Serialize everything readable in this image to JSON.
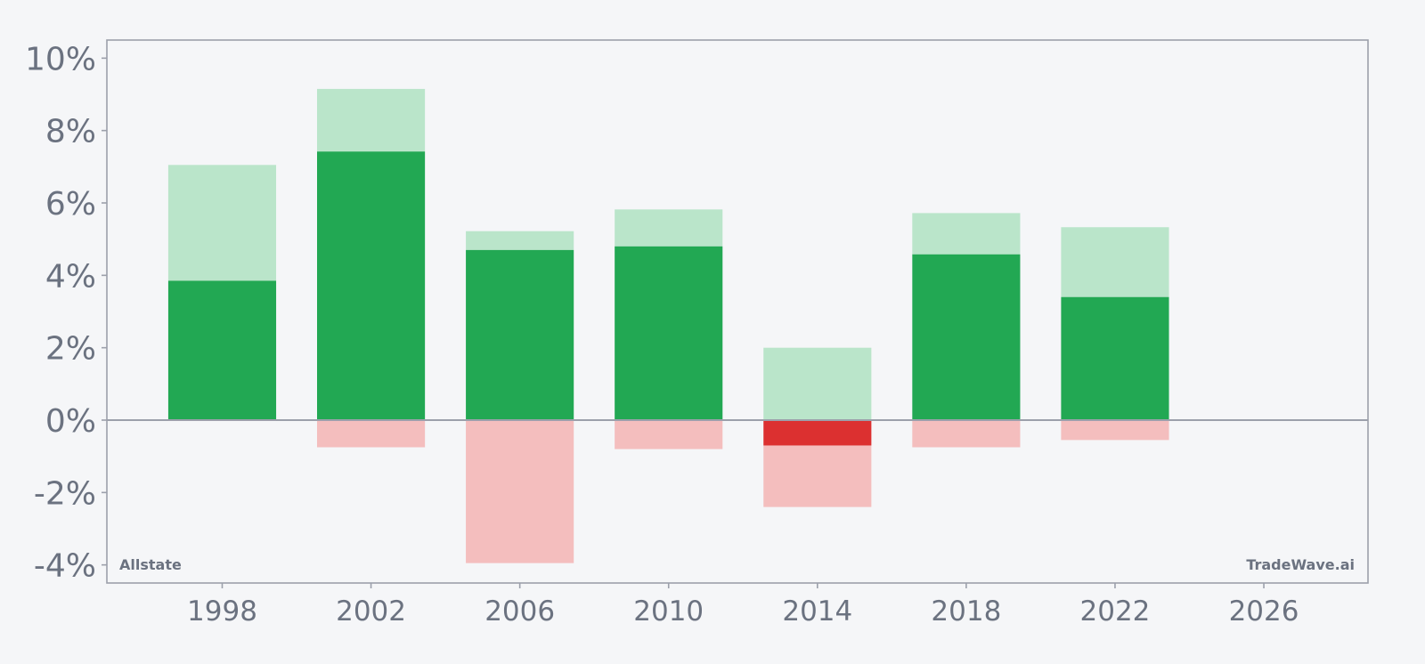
{
  "chart_data": {
    "type": "bar",
    "title": "",
    "xlabel": "",
    "ylabel": "",
    "x": [
      1998,
      2002,
      2006,
      2010,
      2014,
      2018,
      2022
    ],
    "series": [
      {
        "range_pos": [
          3.85,
          7.05,
          4.7,
          4.8,
          2.0,
          4.58,
          5.33
        ]
      },
      {
        "actual": [
          3.85,
          7.42,
          4.7,
          4.8,
          -0.7,
          4.58,
          3.4
        ]
      },
      {
        "range_neg": [
          0,
          -0.75,
          -3.95,
          -0.8,
          -2.4,
          -0.75,
          -0.55
        ]
      },
      {
        "range_top": [
          7.05,
          9.15,
          5.22,
          5.82,
          2.0,
          5.72,
          5.33
        ]
      }
    ],
    "bars": [
      {
        "x": 1998,
        "top": 7.05,
        "actual": 3.85,
        "bottom": 0
      },
      {
        "x": 2002,
        "top": 9.15,
        "actual": 7.42,
        "bottom": -0.75
      },
      {
        "x": 2006,
        "top": 5.22,
        "actual": 4.7,
        "bottom": -3.95
      },
      {
        "x": 2010,
        "top": 5.82,
        "actual": 4.8,
        "bottom": -0.8
      },
      {
        "x": 2014,
        "top": 2.0,
        "actual": -0.7,
        "bottom": -2.4
      },
      {
        "x": 2018,
        "top": 5.72,
        "actual": 4.58,
        "bottom": -0.75
      },
      {
        "x": 2022,
        "top": 5.33,
        "actual": 3.4,
        "bottom": -0.55
      }
    ],
    "xlim": [
      1994.9,
      2028.8
    ],
    "ylim": [
      -4.5,
      10.5
    ],
    "x_ticks": [
      1998,
      2002,
      2006,
      2010,
      2014,
      2018,
      2022,
      2026
    ],
    "x_tick_labels": [
      "1998",
      "2002",
      "2006",
      "2010",
      "2014",
      "2018",
      "2022",
      "2026"
    ],
    "y_ticks": [
      -4,
      -2,
      0,
      2,
      4,
      6,
      8,
      10
    ],
    "y_tick_labels": [
      "-4%",
      "-2%",
      "0%",
      "2%",
      "4%",
      "6%",
      "8%",
      "10%"
    ],
    "grid": false,
    "legend": "none",
    "colors": {
      "positive": "#22a853",
      "positive_light": "#bae5ca",
      "negative": "#dc3030",
      "negative_light": "#f4bebe",
      "axis": "#9ca0ab",
      "text": "#6b7280",
      "background": "#f5f6f8"
    }
  },
  "labels": {
    "company": "Allstate",
    "brand": "TradeWave.ai"
  }
}
